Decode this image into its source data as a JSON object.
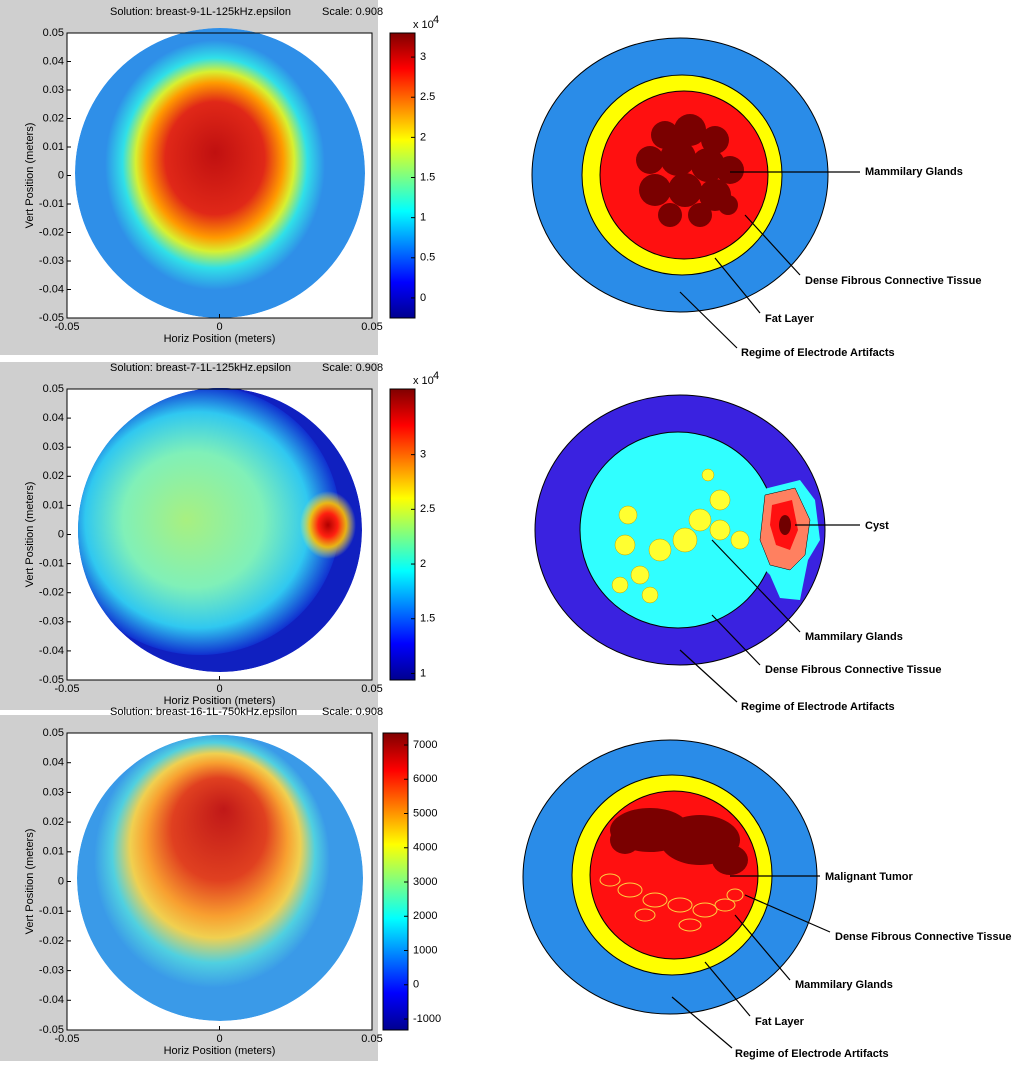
{
  "chart_data": [
    {
      "type": "heatmap",
      "title": "Solution: breast-9-1L-125kHz.epsilon",
      "subtitle": "Scale: 0.908",
      "xlabel": "Horiz Position (meters)",
      "ylabel": "Vert Position (meters)",
      "xlim": [
        -0.05,
        0.05
      ],
      "xticks": [
        -0.05,
        0,
        0.05
      ],
      "ylim": [
        -0.05,
        0.05
      ],
      "yticks": [
        -0.05,
        -0.04,
        -0.03,
        -0.02,
        -0.01,
        0,
        0.01,
        0.02,
        0.03,
        0.04,
        0.05
      ],
      "colorbar": {
        "colormap": "jet",
        "lim": [
          -0.25,
          3.3
        ],
        "ticks": [
          0,
          0.5,
          1,
          1.5,
          2,
          2.5,
          3
        ],
        "multiplier": "x 10",
        "exponent": "4"
      }
    },
    {
      "type": "heatmap",
      "title": "Solution: breast-7-1L-125kHz.epsilon",
      "subtitle": "Scale: 0.908",
      "xlabel": "Horiz Position (meters)",
      "ylabel": "Vert Position (meters)",
      "xlim": [
        -0.05,
        0.05
      ],
      "xticks": [
        -0.05,
        0,
        0.05
      ],
      "ylim": [
        -0.05,
        0.05
      ],
      "yticks": [
        -0.05,
        -0.04,
        -0.03,
        -0.02,
        -0.01,
        0,
        0.01,
        0.02,
        0.03,
        0.04,
        0.05
      ],
      "colorbar": {
        "colormap": "jet",
        "lim": [
          0.94,
          3.6
        ],
        "ticks": [
          1,
          1.5,
          2,
          2.5,
          3
        ],
        "multiplier": "x 10",
        "exponent": "4"
      }
    },
    {
      "type": "heatmap",
      "title": "Solution: breast-16-1L-750kHz.epsilon",
      "subtitle": "Scale: 0.908",
      "xlabel": "Horiz Position (meters)",
      "ylabel": "Vert Position (meters)",
      "xlim": [
        -0.05,
        0.05
      ],
      "xticks": [
        -0.05,
        0,
        0.05
      ],
      "ylim": [
        -0.05,
        0.05
      ],
      "yticks": [
        -0.05,
        -0.04,
        -0.03,
        -0.02,
        -0.01,
        0,
        0.01,
        0.02,
        0.03,
        0.04,
        0.05
      ],
      "colorbar": {
        "colormap": "jet",
        "lim": [
          -1320,
          7350
        ],
        "ticks": [
          -1000,
          0,
          1000,
          2000,
          3000,
          4000,
          5000,
          6000,
          7000
        ]
      }
    }
  ],
  "diagrams": [
    {
      "labels": [
        "Mammilary Glands",
        "Dense Fibrous Connective Tissue",
        "Fat Layer",
        "Regime of Electrode Artifacts"
      ]
    },
    {
      "labels": [
        "Cyst",
        "Mammilary Glands",
        "Dense Fibrous Connective Tissue",
        "Regime of Electrode Artifacts"
      ]
    },
    {
      "labels": [
        "Malignant Tumor",
        "Dense Fibrous Connective Tissue",
        "Mammilary Glands",
        "Fat Layer",
        "Regime of Electrode Artifacts"
      ]
    }
  ]
}
